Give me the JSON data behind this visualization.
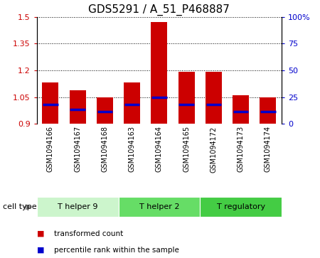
{
  "title": "GDS5291 / A_51_P468887",
  "samples": [
    "GSM1094166",
    "GSM1094167",
    "GSM1094168",
    "GSM1094163",
    "GSM1094164",
    "GSM1094165",
    "GSM1094172",
    "GSM1094173",
    "GSM1094174"
  ],
  "red_values": [
    1.13,
    1.09,
    1.05,
    1.13,
    1.47,
    1.19,
    1.19,
    1.06,
    1.05
  ],
  "blue_values": [
    1.01,
    0.98,
    0.97,
    1.01,
    1.05,
    1.01,
    1.01,
    0.97,
    0.97
  ],
  "ylim_left": [
    0.9,
    1.5
  ],
  "ylim_right": [
    0,
    100
  ],
  "yticks_left": [
    0.9,
    1.05,
    1.2,
    1.35,
    1.5
  ],
  "yticks_right": [
    0,
    25,
    50,
    75,
    100
  ],
  "ytick_labels_left": [
    "0.9",
    "1.05",
    "1.2",
    "1.35",
    "1.5"
  ],
  "ytick_labels_right": [
    "0",
    "25",
    "50",
    "75",
    "100%"
  ],
  "bar_bottom": 0.9,
  "bar_width": 0.6,
  "red_color": "#cc0000",
  "blue_color": "#0000cc",
  "cell_types": [
    {
      "label": "T helper 9",
      "start": 0,
      "end": 3,
      "color": "#ccf5cc"
    },
    {
      "label": "T helper 2",
      "start": 3,
      "end": 6,
      "color": "#66dd66"
    },
    {
      "label": "T regulatory",
      "start": 6,
      "end": 9,
      "color": "#44cc44"
    }
  ],
  "legend_items": [
    {
      "label": "transformed count",
      "color": "#cc0000"
    },
    {
      "label": "percentile rank within the sample",
      "color": "#0000cc"
    }
  ],
  "bg_color": "#ffffff",
  "label_bg_color": "#cccccc",
  "cell_type_label": "cell type"
}
